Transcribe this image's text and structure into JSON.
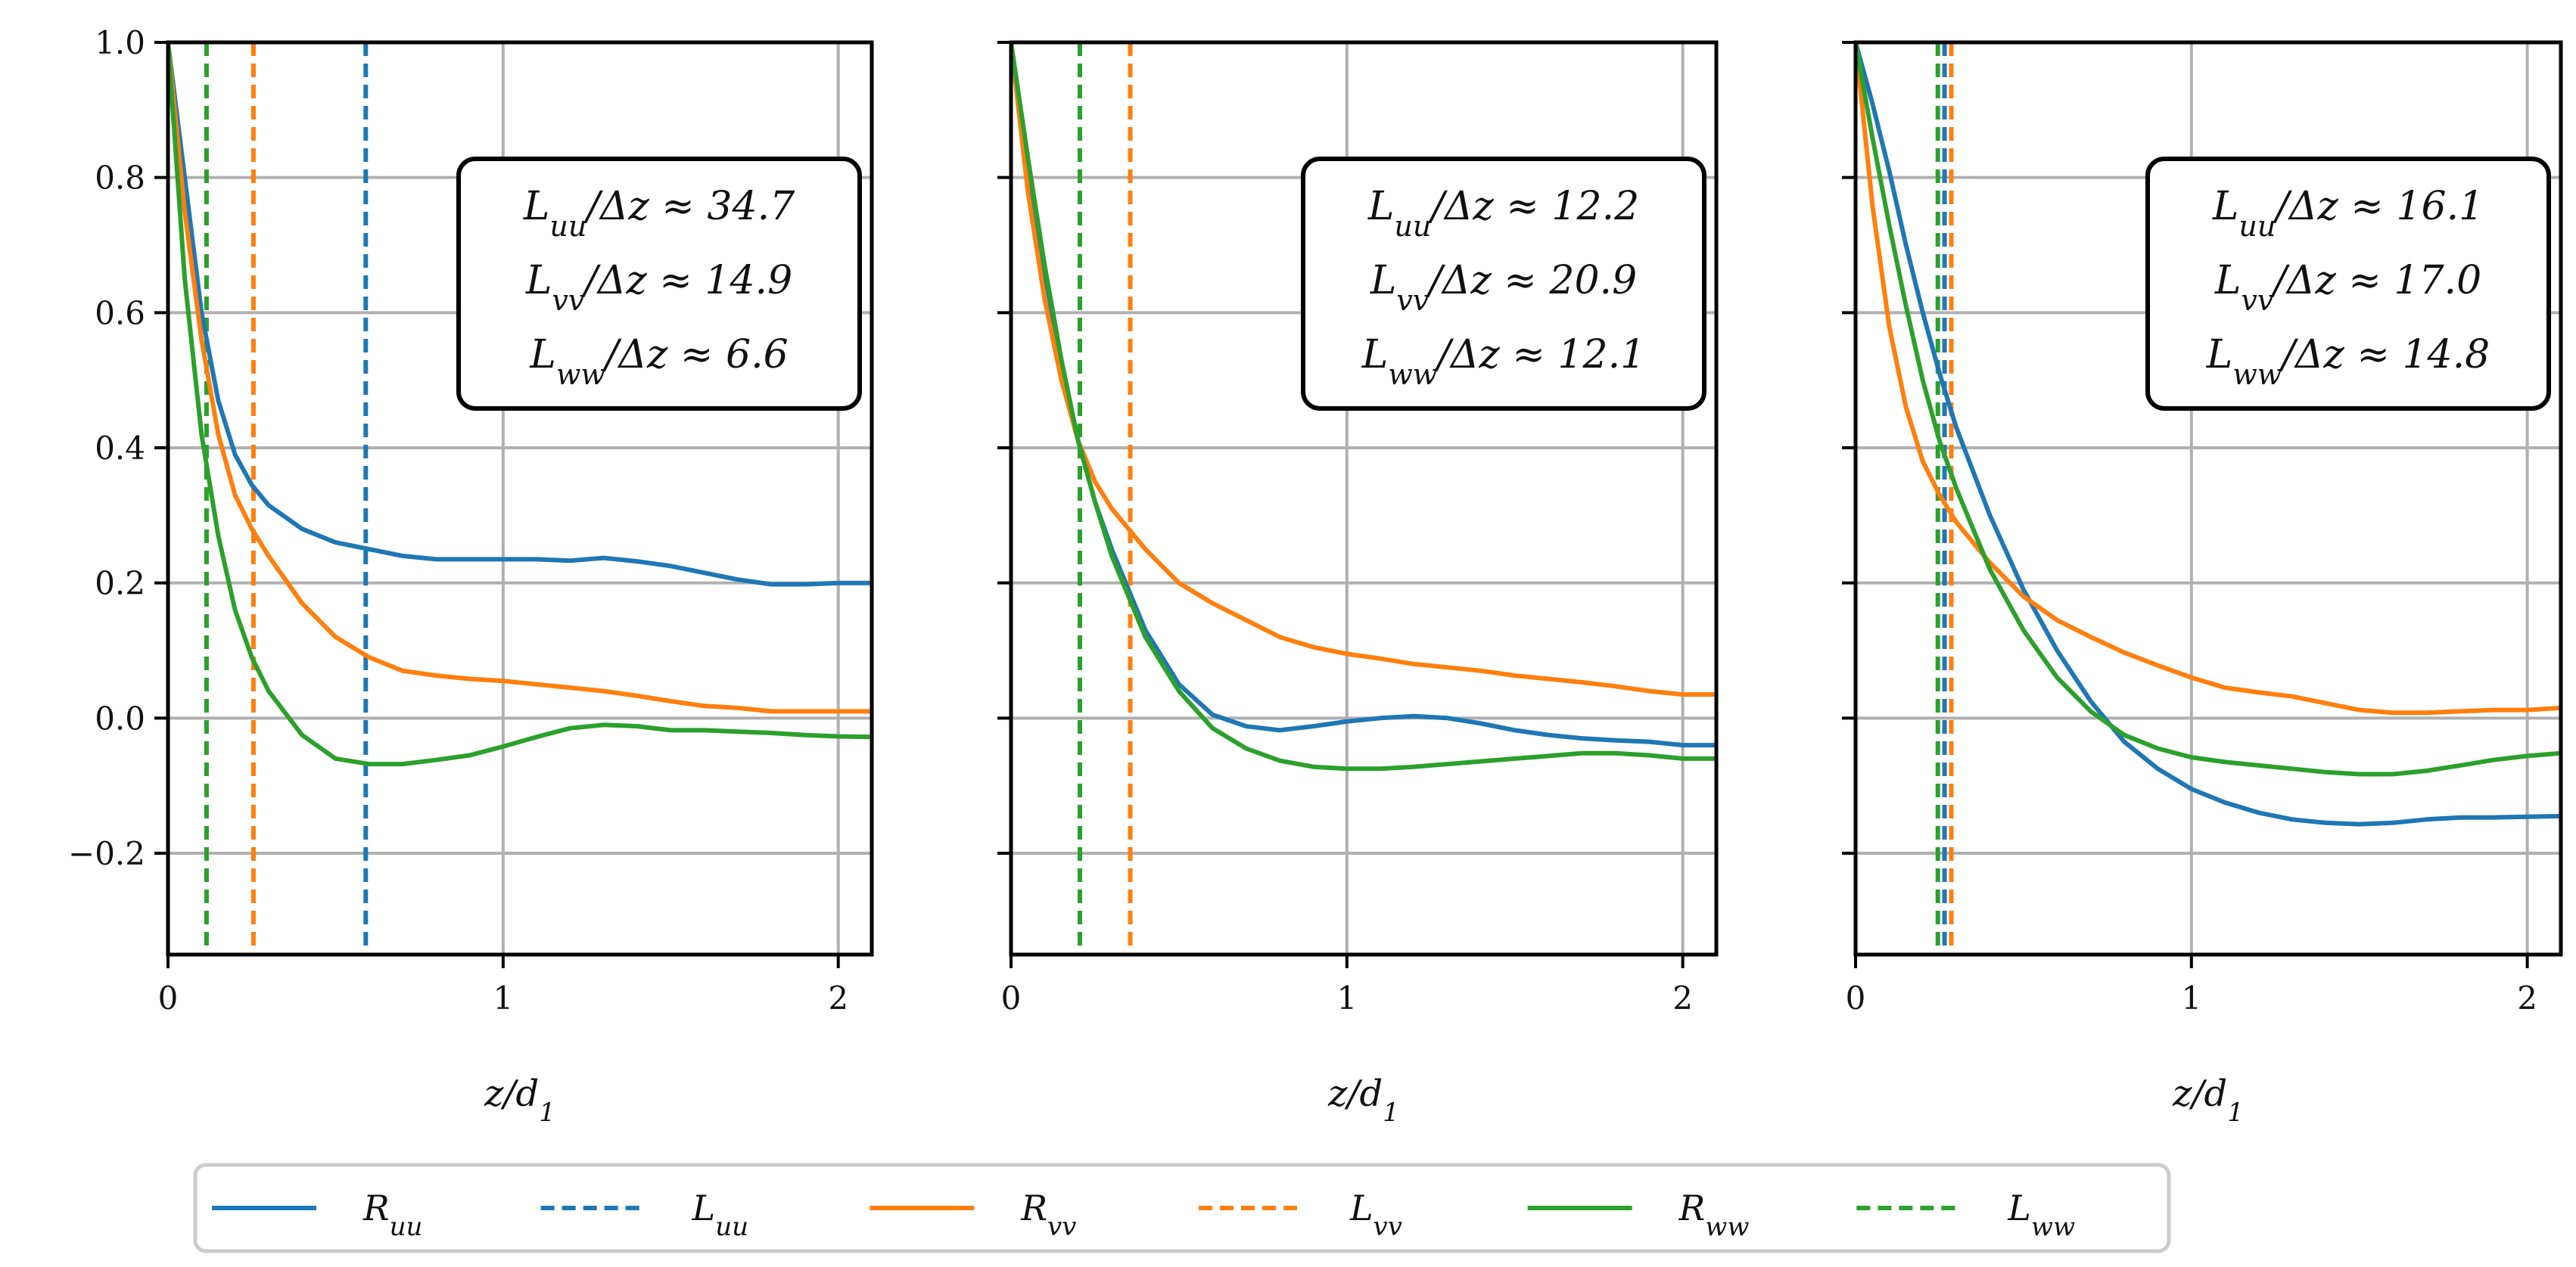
{
  "colors": {
    "uu": "#1f77b4",
    "vv": "#ff7f0e",
    "ww": "#2ca02c",
    "grid": "#b0b0b0"
  },
  "legend": {
    "placement": "bottom-center",
    "items": [
      {
        "label": "R_uu",
        "color": "#1f77b4",
        "style": "solid"
      },
      {
        "label": "L_uu",
        "color": "#1f77b4",
        "style": "dashed"
      },
      {
        "label": "R_vv",
        "color": "#ff7f0e",
        "style": "solid"
      },
      {
        "label": "L_vv",
        "color": "#ff7f0e",
        "style": "dashed"
      },
      {
        "label": "R_ww",
        "color": "#2ca02c",
        "style": "solid"
      },
      {
        "label": "L_ww",
        "color": "#2ca02c",
        "style": "dashed"
      }
    ]
  },
  "chart_data": [
    {
      "type": "line",
      "xlabel": "z/d_1",
      "ylabel": "",
      "xlim": [
        0,
        2.1
      ],
      "ylim": [
        -0.35,
        1.0
      ],
      "xticks": [
        0,
        1,
        2
      ],
      "yticks": [
        -0.2,
        0.0,
        0.2,
        0.4,
        0.6,
        0.8,
        1.0
      ],
      "ytick_labels": [
        "−0.2",
        "0.0",
        "0.2",
        "0.4",
        "0.6",
        "0.8",
        "1.0"
      ],
      "show_ytick_labels": true,
      "grid": true,
      "annotation": [
        "L_uu/Δz ≈ 34.7",
        "L_vv/Δz ≈ 14.9",
        "L_ww/Δz ≈ 6.6"
      ],
      "series": [
        {
          "name": "R_uu",
          "key": "uu",
          "x": [
            0,
            0.05,
            0.1,
            0.15,
            0.2,
            0.25,
            0.3,
            0.4,
            0.5,
            0.6,
            0.7,
            0.8,
            0.9,
            1.0,
            1.1,
            1.2,
            1.3,
            1.4,
            1.5,
            1.6,
            1.7,
            1.8,
            1.9,
            2.0,
            2.1
          ],
          "y": [
            1.0,
            0.8,
            0.6,
            0.47,
            0.39,
            0.345,
            0.315,
            0.28,
            0.26,
            0.25,
            0.24,
            0.235,
            0.235,
            0.235,
            0.235,
            0.233,
            0.237,
            0.232,
            0.225,
            0.215,
            0.205,
            0.198,
            0.198,
            0.2,
            0.2
          ]
        },
        {
          "name": "R_vv",
          "key": "vv",
          "x": [
            0,
            0.05,
            0.1,
            0.15,
            0.2,
            0.25,
            0.3,
            0.4,
            0.5,
            0.6,
            0.7,
            0.8,
            0.9,
            1.0,
            1.1,
            1.2,
            1.3,
            1.4,
            1.5,
            1.6,
            1.7,
            1.8,
            1.9,
            2.0,
            2.1
          ],
          "y": [
            1.0,
            0.75,
            0.56,
            0.42,
            0.33,
            0.28,
            0.24,
            0.17,
            0.12,
            0.09,
            0.07,
            0.063,
            0.058,
            0.055,
            0.05,
            0.045,
            0.04,
            0.033,
            0.025,
            0.018,
            0.015,
            0.01,
            0.01,
            0.01,
            0.01
          ]
        },
        {
          "name": "R_ww",
          "key": "ww",
          "x": [
            0,
            0.05,
            0.1,
            0.15,
            0.2,
            0.25,
            0.3,
            0.4,
            0.5,
            0.6,
            0.7,
            0.8,
            0.9,
            1.0,
            1.1,
            1.2,
            1.3,
            1.4,
            1.5,
            1.6,
            1.7,
            1.8,
            1.9,
            2.0,
            2.1
          ],
          "y": [
            1.0,
            0.65,
            0.42,
            0.27,
            0.16,
            0.09,
            0.04,
            -0.025,
            -0.06,
            -0.068,
            -0.068,
            -0.062,
            -0.055,
            -0.042,
            -0.028,
            -0.015,
            -0.01,
            -0.012,
            -0.018,
            -0.018,
            -0.02,
            -0.022,
            -0.025,
            -0.027,
            -0.028
          ]
        }
      ],
      "length_markers": [
        {
          "name": "L_uu",
          "key": "uu",
          "x": 0.59
        },
        {
          "name": "L_vv",
          "key": "vv",
          "x": 0.255
        },
        {
          "name": "L_ww",
          "key": "ww",
          "x": 0.115
        }
      ]
    },
    {
      "type": "line",
      "xlabel": "z/d_1",
      "ylabel": "",
      "xlim": [
        0,
        2.1
      ],
      "ylim": [
        -0.35,
        1.0
      ],
      "xticks": [
        0,
        1,
        2
      ],
      "yticks": [
        -0.2,
        0.0,
        0.2,
        0.4,
        0.6,
        0.8,
        1.0
      ],
      "ytick_labels": [],
      "show_ytick_labels": false,
      "grid": true,
      "annotation": [
        "L_uu/Δz ≈ 12.2",
        "L_vv/Δz ≈ 20.9",
        "L_ww/Δz ≈ 12.1"
      ],
      "series": [
        {
          "name": "R_uu",
          "key": "uu",
          "x": [
            0,
            0.05,
            0.1,
            0.15,
            0.2,
            0.25,
            0.3,
            0.4,
            0.5,
            0.6,
            0.7,
            0.8,
            0.9,
            1.0,
            1.1,
            1.2,
            1.3,
            1.4,
            1.5,
            1.6,
            1.7,
            1.8,
            1.9,
            2.0,
            2.1
          ],
          "y": [
            1.0,
            0.82,
            0.66,
            0.52,
            0.41,
            0.32,
            0.25,
            0.13,
            0.05,
            0.005,
            -0.012,
            -0.018,
            -0.012,
            -0.005,
            0.0,
            0.003,
            0.0,
            -0.008,
            -0.018,
            -0.025,
            -0.03,
            -0.033,
            -0.035,
            -0.04,
            -0.04
          ]
        },
        {
          "name": "R_vv",
          "key": "vv",
          "x": [
            0,
            0.05,
            0.1,
            0.15,
            0.2,
            0.25,
            0.3,
            0.4,
            0.5,
            0.6,
            0.7,
            0.8,
            0.9,
            1.0,
            1.1,
            1.2,
            1.3,
            1.4,
            1.5,
            1.6,
            1.7,
            1.8,
            1.9,
            2.0,
            2.1
          ],
          "y": [
            1.0,
            0.78,
            0.62,
            0.5,
            0.41,
            0.35,
            0.31,
            0.25,
            0.2,
            0.17,
            0.145,
            0.12,
            0.105,
            0.095,
            0.088,
            0.08,
            0.075,
            0.07,
            0.063,
            0.058,
            0.053,
            0.047,
            0.04,
            0.035,
            0.035
          ]
        },
        {
          "name": "R_ww",
          "key": "ww",
          "x": [
            0,
            0.05,
            0.1,
            0.15,
            0.2,
            0.25,
            0.3,
            0.4,
            0.5,
            0.6,
            0.7,
            0.8,
            0.9,
            1.0,
            1.1,
            1.2,
            1.3,
            1.4,
            1.5,
            1.6,
            1.7,
            1.8,
            1.9,
            2.0,
            2.1
          ],
          "y": [
            1.0,
            0.83,
            0.67,
            0.53,
            0.41,
            0.32,
            0.24,
            0.12,
            0.04,
            -0.015,
            -0.045,
            -0.063,
            -0.072,
            -0.075,
            -0.075,
            -0.072,
            -0.068,
            -0.064,
            -0.06,
            -0.056,
            -0.052,
            -0.052,
            -0.055,
            -0.06,
            -0.06
          ]
        }
      ],
      "length_markers": [
        {
          "name": "L_uu",
          "key": "uu",
          "x": 0.205
        },
        {
          "name": "L_vv",
          "key": "vv",
          "x": 0.355
        },
        {
          "name": "L_ww",
          "key": "ww",
          "x": 0.205
        }
      ]
    },
    {
      "type": "line",
      "xlabel": "z/d_1",
      "ylabel": "",
      "xlim": [
        0,
        2.1
      ],
      "ylim": [
        -0.35,
        1.0
      ],
      "xticks": [
        0,
        1,
        2
      ],
      "yticks": [
        -0.2,
        0.0,
        0.2,
        0.4,
        0.6,
        0.8,
        1.0
      ],
      "ytick_labels": [],
      "show_ytick_labels": false,
      "grid": true,
      "annotation": [
        "L_uu/Δz ≈ 16.1",
        "L_vv/Δz ≈ 17.0",
        "L_ww/Δz ≈ 14.8"
      ],
      "series": [
        {
          "name": "R_uu",
          "key": "uu",
          "x": [
            0,
            0.05,
            0.1,
            0.15,
            0.2,
            0.25,
            0.3,
            0.4,
            0.5,
            0.6,
            0.7,
            0.8,
            0.9,
            1.0,
            1.1,
            1.2,
            1.3,
            1.4,
            1.5,
            1.6,
            1.7,
            1.8,
            1.9,
            2.0,
            2.1
          ],
          "y": [
            1.0,
            0.91,
            0.81,
            0.7,
            0.6,
            0.51,
            0.43,
            0.3,
            0.19,
            0.1,
            0.025,
            -0.035,
            -0.075,
            -0.105,
            -0.125,
            -0.14,
            -0.15,
            -0.155,
            -0.157,
            -0.155,
            -0.15,
            -0.147,
            -0.147,
            -0.146,
            -0.145
          ]
        },
        {
          "name": "R_vv",
          "key": "vv",
          "x": [
            0,
            0.05,
            0.1,
            0.15,
            0.2,
            0.25,
            0.3,
            0.4,
            0.5,
            0.6,
            0.7,
            0.8,
            0.9,
            1.0,
            1.1,
            1.2,
            1.3,
            1.4,
            1.5,
            1.6,
            1.7,
            1.8,
            1.9,
            2.0,
            2.1
          ],
          "y": [
            1.0,
            0.76,
            0.58,
            0.46,
            0.38,
            0.33,
            0.29,
            0.23,
            0.18,
            0.145,
            0.12,
            0.097,
            0.078,
            0.06,
            0.045,
            0.038,
            0.032,
            0.022,
            0.012,
            0.008,
            0.008,
            0.01,
            0.012,
            0.012,
            0.015
          ]
        },
        {
          "name": "R_ww",
          "key": "ww",
          "x": [
            0,
            0.05,
            0.1,
            0.15,
            0.2,
            0.25,
            0.3,
            0.4,
            0.5,
            0.6,
            0.7,
            0.8,
            0.9,
            1.0,
            1.1,
            1.2,
            1.3,
            1.4,
            1.5,
            1.6,
            1.7,
            1.8,
            1.9,
            2.0,
            2.1
          ],
          "y": [
            1.0,
            0.86,
            0.73,
            0.61,
            0.5,
            0.41,
            0.34,
            0.22,
            0.13,
            0.06,
            0.01,
            -0.025,
            -0.045,
            -0.058,
            -0.065,
            -0.07,
            -0.075,
            -0.08,
            -0.083,
            -0.083,
            -0.078,
            -0.07,
            -0.062,
            -0.056,
            -0.052
          ]
        }
      ],
      "length_markers": [
        {
          "name": "L_uu",
          "key": "uu",
          "x": 0.265
        },
        {
          "name": "L_vv",
          "key": "vv",
          "x": 0.285
        },
        {
          "name": "L_ww",
          "key": "ww",
          "x": 0.245
        }
      ]
    }
  ]
}
